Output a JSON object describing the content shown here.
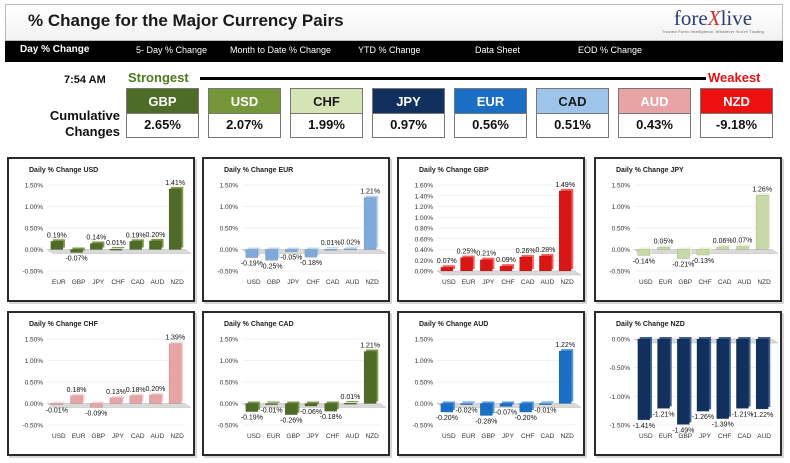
{
  "header": {
    "title": "% Change for the Major Currency Pairs",
    "logo": {
      "prefix": "fore",
      "x": "X",
      "suffix": "live",
      "tagline": "Trusted Forex Intelligence. Whatever You're Trading"
    }
  },
  "nav": [
    "Day % Change",
    "5- Day % Change",
    "Month to Date % Change",
    "YTD % Change",
    "Data Sheet",
    "EOD % Change"
  ],
  "summary": {
    "time": "7:54 AM",
    "strongest_label": "Strongest",
    "weakest_label": "Weakest",
    "cumulative_label_line1": "Cumulative",
    "cumulative_label_line2": "Changes",
    "tiles": [
      {
        "code": "GBP",
        "value": "2.65%",
        "bg": "#4f6b28",
        "fg": "#ffffff"
      },
      {
        "code": "USD",
        "value": "2.07%",
        "bg": "#76963a",
        "fg": "#ffffff"
      },
      {
        "code": "CHF",
        "value": "1.99%",
        "bg": "#d5e4b4",
        "fg": "#1a1a1a"
      },
      {
        "code": "JPY",
        "value": "0.97%",
        "bg": "#12305e",
        "fg": "#ffffff"
      },
      {
        "code": "EUR",
        "value": "0.56%",
        "bg": "#1a6fc4",
        "fg": "#ffffff"
      },
      {
        "code": "CAD",
        "value": "0.51%",
        "bg": "#9ec4ec",
        "fg": "#1a1a1a"
      },
      {
        "code": "AUD",
        "value": "0.43%",
        "bg": "#e8a4a4",
        "fg": "#ffffff"
      },
      {
        "code": "NZD",
        "value": "-9.18%",
        "bg": "#ee1111",
        "fg": "#ffffff"
      }
    ]
  },
  "chart_data": [
    {
      "type": "bar",
      "title": "Daily % Change USD",
      "categories": [
        "EUR",
        "GBP",
        "JPY",
        "CHF",
        "CAD",
        "AUD",
        "NZD"
      ],
      "values": [
        0.19,
        -0.07,
        0.14,
        0.01,
        0.19,
        0.2,
        1.41
      ],
      "labels": [
        "0.19%",
        "-0.07%",
        "0.14%",
        "0.01%",
        "0.19%",
        "0.20%",
        "1.41%"
      ],
      "ylim": [
        -0.5,
        1.5
      ],
      "yticks": [
        "1.50%",
        "1.00%",
        "0.50%",
        "0.00%",
        "-0.50%"
      ],
      "color": "#4f6b28",
      "highlight": "#6e8f36"
    },
    {
      "type": "bar",
      "title": "Daily % Change EUR",
      "categories": [
        "USD",
        "GBP",
        "JPY",
        "CHF",
        "CAD",
        "AUD",
        "NZD"
      ],
      "values": [
        -0.19,
        -0.25,
        -0.05,
        -0.18,
        0.01,
        0.02,
        1.21
      ],
      "labels": [
        "-0.19%",
        "-0.25%",
        "-0.05%",
        "-0.18%",
        "0.01%",
        "0.02%",
        "1.21%"
      ],
      "ylim": [
        -0.5,
        1.5
      ],
      "yticks": [
        "1.50%",
        "1.00%",
        "0.50%",
        "0.00%",
        "-0.50%"
      ],
      "color": "#7ea9d8",
      "highlight": "#b7d3f2"
    },
    {
      "type": "bar",
      "title": "Daily % Change GBP",
      "categories": [
        "USD",
        "EUR",
        "JPY",
        "CHF",
        "CAD",
        "AUD",
        "NZD"
      ],
      "values": [
        0.07,
        0.25,
        0.21,
        0.09,
        0.26,
        0.28,
        1.49
      ],
      "labels": [
        "0.07%",
        "0.25%",
        "0.21%",
        "0.09%",
        "0.26%",
        "0.28%",
        "1.49%"
      ],
      "ylim": [
        0,
        1.6
      ],
      "yticks": [
        "1.60%",
        "1.40%",
        "1.20%",
        "1.00%",
        "0.80%",
        "0.60%",
        "0.40%",
        "0.20%",
        "0.00%"
      ],
      "color": "#d91515",
      "highlight": "#ff4a4a"
    },
    {
      "type": "bar",
      "title": "Daily % Change JPY",
      "categories": [
        "USD",
        "EUR",
        "GBP",
        "CHF",
        "CAD",
        "AUD",
        "NZD"
      ],
      "values": [
        -0.14,
        0.05,
        -0.21,
        -0.13,
        0.06,
        0.07,
        1.26
      ],
      "labels": [
        "-0.14%",
        "0.05%",
        "-0.21%",
        "-0.13%",
        "0.06%",
        "0.07%",
        "1.26%"
      ],
      "ylim": [
        -0.5,
        1.5
      ],
      "yticks": [
        "1.50%",
        "1.00%",
        "0.50%",
        "0.00%",
        "-0.50%"
      ],
      "color": "#c7d9a6",
      "highlight": "#e3efcc"
    },
    {
      "type": "bar",
      "title": "Daily % Change CHF",
      "categories": [
        "USD",
        "EUR",
        "GBP",
        "JPY",
        "CAD",
        "AUD",
        "NZD"
      ],
      "values": [
        -0.01,
        0.18,
        -0.09,
        0.13,
        0.18,
        0.2,
        1.39
      ],
      "labels": [
        "-0.01%",
        "0.18%",
        "-0.09%",
        "0.13%",
        "0.18%",
        "0.20%",
        "1.39%"
      ],
      "ylim": [
        -0.5,
        1.5
      ],
      "yticks": [
        "1.50%",
        "1.00%",
        "0.50%",
        "0.00%",
        "-0.50%"
      ],
      "color": "#e8a4a4",
      "highlight": "#f6d0d0"
    },
    {
      "type": "bar",
      "title": "Daily % Change CAD",
      "categories": [
        "USD",
        "EUR",
        "GBP",
        "JPY",
        "CHF",
        "AUD",
        "NZD"
      ],
      "values": [
        -0.19,
        -0.01,
        -0.26,
        -0.06,
        -0.18,
        0.01,
        1.21
      ],
      "labels": [
        "-0.19%",
        "-0.01%",
        "-0.26%",
        "-0.06%",
        "-0.18%",
        "0.01%",
        "1.21%"
      ],
      "ylim": [
        -0.5,
        1.5
      ],
      "yticks": [
        "1.50%",
        "1.00%",
        "0.50%",
        "0.00%",
        "-0.50%"
      ],
      "color": "#4f6b28",
      "highlight": "#6e8f36"
    },
    {
      "type": "bar",
      "title": "Daily % Change AUD",
      "categories": [
        "USD",
        "EUR",
        "GBP",
        "JPY",
        "CHF",
        "CAD",
        "NZD"
      ],
      "values": [
        -0.2,
        -0.02,
        -0.28,
        -0.07,
        -0.2,
        -0.01,
        1.22
      ],
      "labels": [
        "-0.20%",
        "-0.02%",
        "-0.28%",
        "-0.07%",
        "-0.20%",
        "-0.01%",
        "1.22%"
      ],
      "ylim": [
        -0.5,
        1.5
      ],
      "yticks": [
        "1.50%",
        "1.00%",
        "0.50%",
        "0.00%",
        "-0.50%"
      ],
      "color": "#1a6fc4",
      "highlight": "#3d8de0"
    },
    {
      "type": "bar",
      "title": "Daily % Change NZD",
      "categories": [
        "USD",
        "EUR",
        "GBP",
        "JPY",
        "CHF",
        "CAD",
        "AUD"
      ],
      "values": [
        -1.41,
        -1.21,
        -1.49,
        -1.26,
        -1.39,
        -1.21,
        -1.22
      ],
      "labels": [
        "-1.41%",
        "-1.21%",
        "-1.49%",
        "-1.26%",
        "-1.39%",
        "-1.21%",
        "-1.22%"
      ],
      "ylim": [
        -1.5,
        0
      ],
      "yticks": [
        "0.00%",
        "-0.50%",
        "-1.00%",
        "-1.50%"
      ],
      "color": "#12305e",
      "highlight": "#2a4e88"
    }
  ]
}
